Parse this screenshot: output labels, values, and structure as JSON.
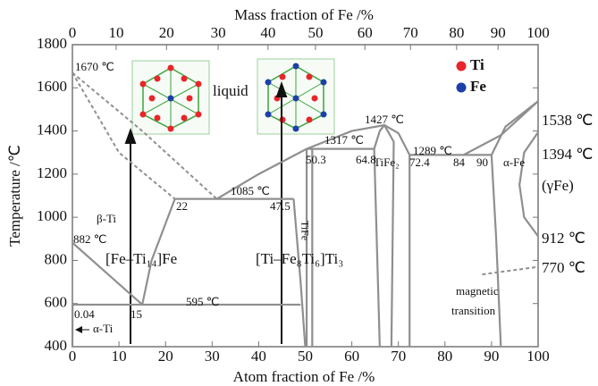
{
  "chart_data": {
    "type": "phase-diagram",
    "x_label": "Atom fraction of Fe /%",
    "x2_label": "Mass fraction of Fe /%",
    "y_label": "Temperature /℃",
    "xlim": [
      0,
      100
    ],
    "xticks": [
      0,
      10,
      20,
      30,
      40,
      50,
      60,
      70,
      80,
      90,
      100
    ],
    "ylim": [
      400,
      1800
    ],
    "yticks": [
      400,
      600,
      800,
      1000,
      1200,
      1400,
      1600,
      1800
    ],
    "x2ticks": [
      {
        "value": 0,
        "at": 0
      },
      {
        "value": 10,
        "at": 9.4
      },
      {
        "value": 20,
        "at": 20.2
      },
      {
        "value": 30,
        "at": 31.3
      },
      {
        "value": 40,
        "at": 42
      },
      {
        "value": 50,
        "at": 52.2
      },
      {
        "value": 60,
        "at": 62.8
      },
      {
        "value": 70,
        "at": 72.6
      },
      {
        "value": 80,
        "at": 82.5
      },
      {
        "value": 90,
        "at": 91.4
      },
      {
        "value": 100,
        "at": 100
      }
    ],
    "legend": [
      {
        "name": "Ti",
        "color": "#e8262a"
      },
      {
        "name": "Fe",
        "color": "#1d3fa8"
      }
    ],
    "boundaries": [
      {
        "x": [
          0,
          15,
          31
        ],
        "y": [
          1670,
          1400,
          1085
        ],
        "dashed": true
      },
      {
        "x": [
          0,
          10,
          22
        ],
        "y": [
          1670,
          1300,
          1085
        ],
        "dashed": true
      },
      {
        "x": [
          22,
          47.5
        ],
        "y": [
          1085,
          1085
        ],
        "dashed": false
      },
      {
        "x": [
          31,
          40,
          50.3,
          60,
          67,
          70,
          72.4
        ],
        "y": [
          1085,
          1200,
          1317,
          1400,
          1427,
          1390,
          1289
        ],
        "dashed": false
      },
      {
        "x": [
          50.3,
          64.8
        ],
        "y": [
          1317,
          1317
        ],
        "dashed": false
      },
      {
        "x": [
          50.3,
          50.3
        ],
        "y": [
          1317,
          400
        ],
        "dashed": false
      },
      {
        "x": [
          51.5,
          51.5
        ],
        "y": [
          1317,
          400
        ],
        "dashed": false
      },
      {
        "x": [
          64.8,
          66,
          67
        ],
        "y": [
          1317,
          1400,
          1427
        ],
        "dashed": false
      },
      {
        "x": [
          64.8,
          66
        ],
        "y": [
          1317,
          400
        ],
        "dashed": false
      },
      {
        "x": [
          67,
          69,
          68.5
        ],
        "y": [
          1427,
          1350,
          400
        ],
        "dashed": false
      },
      {
        "x": [
          72.4,
          90
        ],
        "y": [
          1289,
          1289
        ],
        "dashed": false
      },
      {
        "x": [
          72.4,
          72.4
        ],
        "y": [
          1289,
          400
        ],
        "dashed": false
      },
      {
        "x": [
          84,
          92,
          100
        ],
        "y": [
          1289,
          1380,
          1538
        ],
        "dashed": false
      },
      {
        "x": [
          100,
          93,
          90
        ],
        "y": [
          1538,
          1420,
          1289
        ],
        "dashed": false
      },
      {
        "x": [
          90,
          91,
          92
        ],
        "y": [
          1289,
          900,
          400
        ],
        "dashed": false
      },
      {
        "x": [
          100,
          97,
          96,
          97,
          100
        ],
        "y": [
          1394,
          1300,
          1150,
          1000,
          912
        ],
        "dashed": false
      },
      {
        "x": [
          88,
          100
        ],
        "y": [
          735,
          770
        ],
        "dashed": true
      },
      {
        "x": [
          22,
          17,
          15
        ],
        "y": [
          1085,
          800,
          595
        ],
        "dashed": false
      },
      {
        "x": [
          0,
          15
        ],
        "y": [
          882,
          595
        ],
        "dashed": false
      },
      {
        "x": [
          0.04,
          49
        ],
        "y": [
          595,
          595
        ],
        "dashed": false
      },
      {
        "x": [
          0.04,
          0
        ],
        "y": [
          595,
          400
        ],
        "dashed": false
      },
      {
        "x": [
          47.5,
          49,
          50
        ],
        "y": [
          1085,
          700,
          400
        ],
        "dashed": false
      }
    ],
    "annotations": [
      "1670 ℃",
      "liquid",
      "1427 ℃",
      "1317 ℃",
      "1289 ℃",
      "1085 ℃",
      "50.3",
      "64.8",
      "TiFe₂",
      "72.4",
      "84",
      "90",
      "α-Fe",
      "22",
      "47.5",
      "β-Ti",
      "882 ℃",
      "[Fe–Ti₁₄]Fe",
      "[Ti–Fe₈Ti₆]Ti₃",
      "TiFe",
      "595 ℃",
      "0.04",
      "15",
      "α-Ti",
      "magnetic",
      "transition",
      "1538 ℃",
      "1394 ℃",
      "(γFe)",
      "912 ℃",
      "770 ℃"
    ]
  }
}
